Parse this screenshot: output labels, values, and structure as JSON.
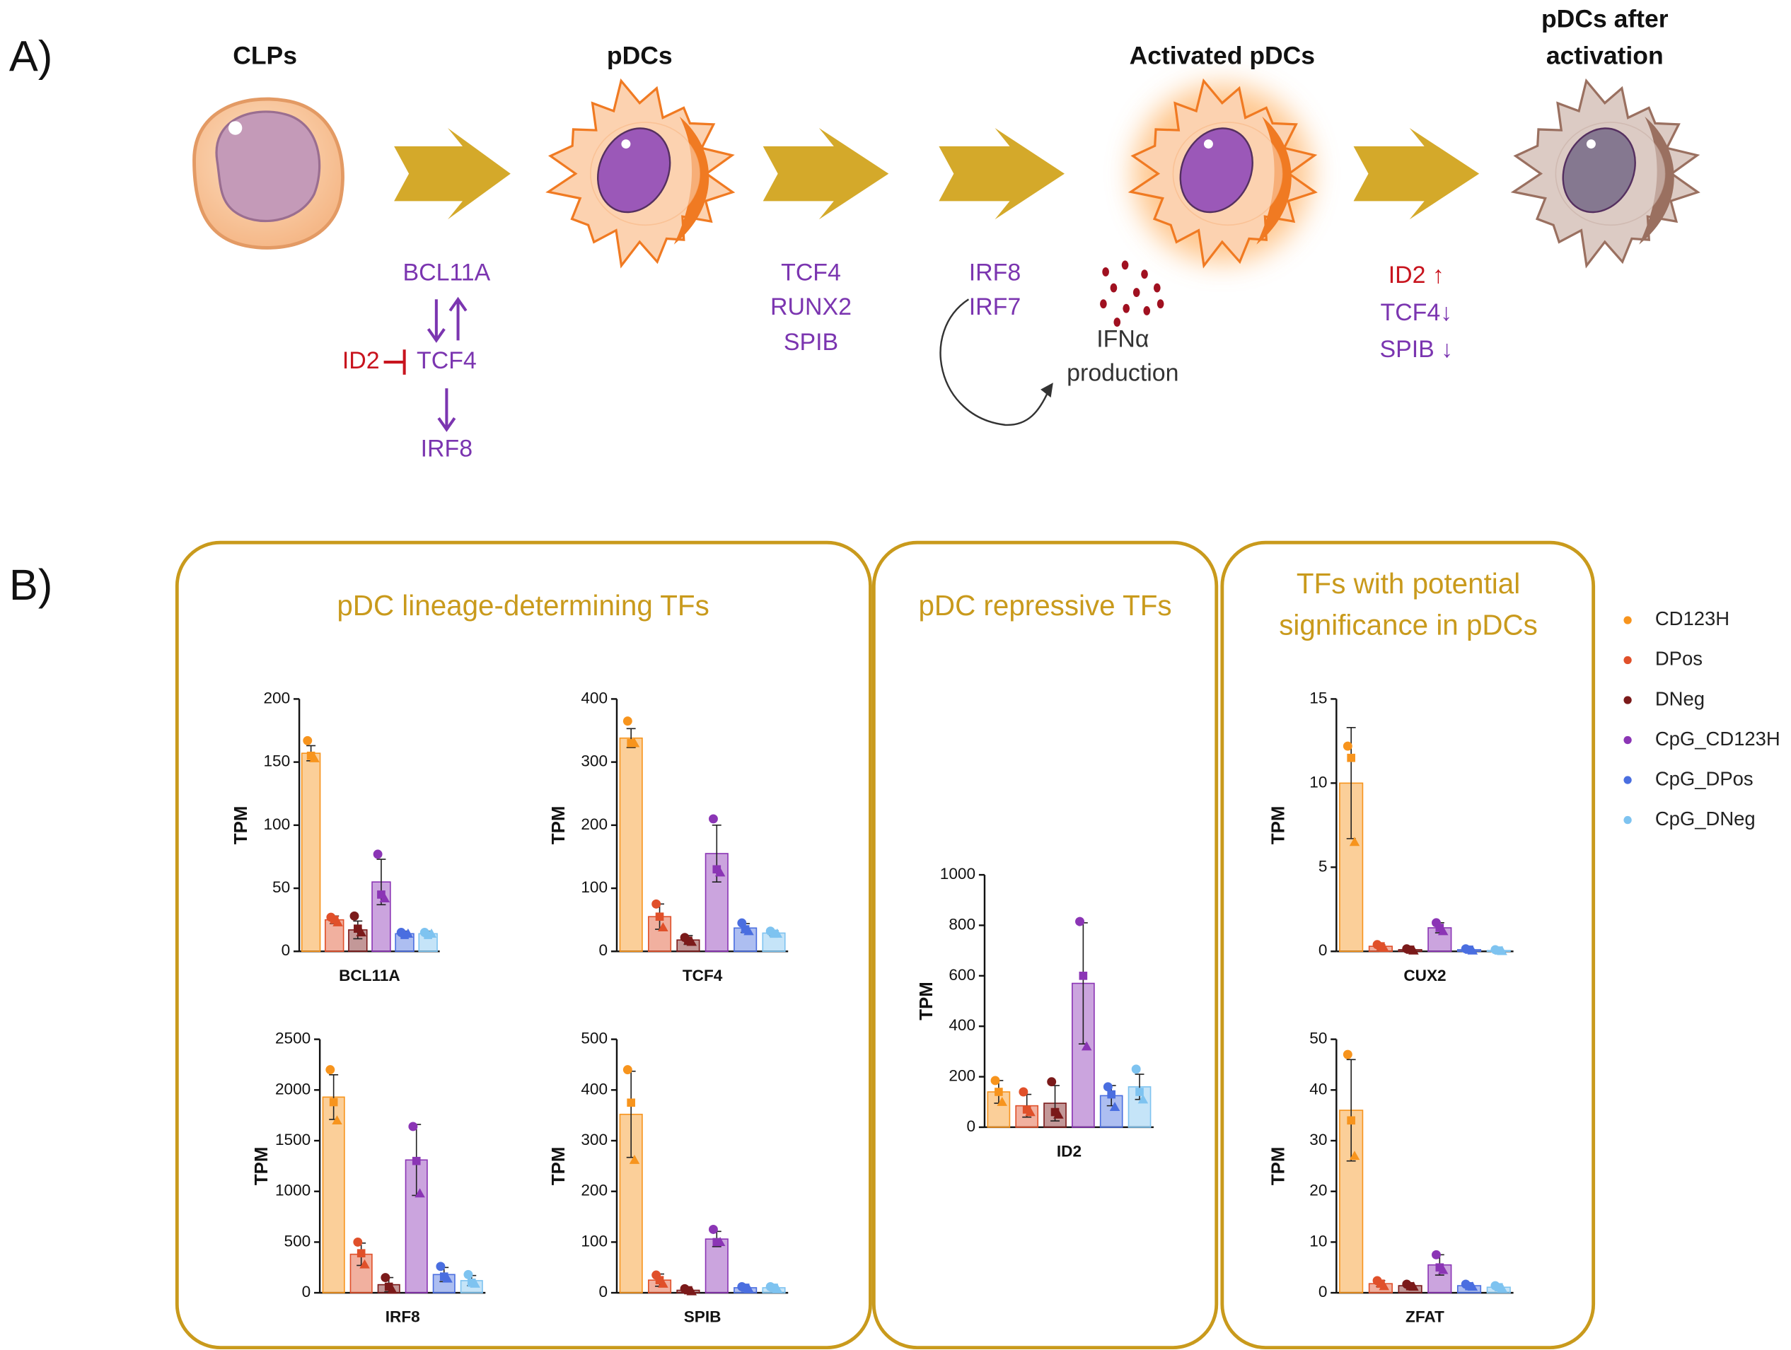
{
  "panel_a": {
    "label": "A)",
    "stages": [
      "CLPs",
      "pDCs",
      "Activated pDCs",
      "pDCs after",
      "activation"
    ],
    "step1": {
      "top": "BCL11A",
      "middle": "TCF4",
      "bottom": "IRF8",
      "inhibitor": "ID2"
    },
    "step2": [
      "TCF4",
      "RUNX2",
      "SPIB"
    ],
    "step3": [
      "IRF8",
      "IRF7"
    ],
    "output": [
      "IFNα",
      "production"
    ],
    "step4": [
      "ID2 ↑",
      "TCF4↓",
      "SPIB ↓"
    ]
  },
  "panel_b": {
    "label": "B)",
    "groups": [
      "pDC lineage-determining TFs",
      "pDC repressive TFs",
      "TFs with potential",
      "significance in pDCs"
    ]
  },
  "legend": {
    "names": [
      "CD123H",
      "DPos",
      "DNeg",
      "CpG_CD123H",
      "CpG_DPos",
      "CpG_DNeg"
    ],
    "colors": [
      "#f7941d",
      "#e0502a",
      "#7b1a1a",
      "#8b35b5",
      "#4a6ee0",
      "#7ec3f0"
    ]
  },
  "chart_data": [
    {
      "type": "bar",
      "xlabel": "BCL11A",
      "ylabel": "TPM",
      "ylim": [
        0,
        200
      ],
      "yticks": [
        0,
        50,
        100,
        150,
        200
      ],
      "values": [
        157,
        25,
        17,
        55,
        14,
        14
      ],
      "errors": [
        6,
        3,
        7,
        18,
        2,
        2
      ],
      "points": [
        [
          167,
          155,
          153
        ],
        [
          27,
          25,
          23
        ],
        [
          28,
          18,
          15
        ],
        [
          77,
          45,
          42
        ],
        [
          15,
          13,
          14
        ],
        [
          15,
          13,
          14
        ]
      ]
    },
    {
      "type": "bar",
      "xlabel": "TCF4",
      "ylabel": "TPM",
      "ylim": [
        0,
        400
      ],
      "yticks": [
        0,
        100,
        200,
        300,
        400
      ],
      "values": [
        338,
        55,
        18,
        155,
        37,
        29
      ],
      "errors": [
        15,
        20,
        7,
        45,
        7,
        4
      ],
      "points": [
        [
          365,
          330,
          330
        ],
        [
          75,
          55,
          38
        ],
        [
          22,
          17,
          15
        ],
        [
          210,
          130,
          125
        ],
        [
          45,
          35,
          32
        ],
        [
          32,
          28,
          28
        ]
      ]
    },
    {
      "type": "bar",
      "xlabel": "IRF8",
      "ylabel": "TPM",
      "ylim": [
        0,
        2500
      ],
      "yticks": [
        0,
        500,
        1000,
        1500,
        2000,
        2500
      ],
      "values": [
        1930,
        380,
        80,
        1310,
        180,
        120
      ],
      "errors": [
        220,
        110,
        70,
        350,
        70,
        50
      ],
      "points": [
        [
          2200,
          1880,
          1700
        ],
        [
          500,
          390,
          280
        ],
        [
          150,
          60,
          30
        ],
        [
          1640,
          1300,
          980
        ],
        [
          260,
          160,
          140
        ],
        [
          180,
          100,
          90
        ]
      ]
    },
    {
      "type": "bar",
      "xlabel": "SPIB",
      "ylabel": "TPM",
      "ylim": [
        0,
        500
      ],
      "yticks": [
        0,
        100,
        200,
        300,
        400,
        500
      ],
      "values": [
        352,
        25,
        5,
        106,
        10,
        10
      ],
      "errors": [
        85,
        12,
        4,
        15,
        3,
        3
      ],
      "points": [
        [
          440,
          375,
          262
        ],
        [
          35,
          25,
          18
        ],
        [
          8,
          5,
          3
        ],
        [
          125,
          100,
          100
        ],
        [
          12,
          10,
          8
        ],
        [
          12,
          10,
          8
        ]
      ]
    },
    {
      "type": "bar",
      "xlabel": "ID2",
      "ylabel": "TPM",
      "ylim": [
        0,
        1000
      ],
      "yticks": [
        0,
        200,
        400,
        600,
        800,
        1000
      ],
      "values": [
        140,
        85,
        95,
        570,
        125,
        160
      ],
      "errors": [
        45,
        45,
        70,
        240,
        40,
        50
      ],
      "points": [
        [
          185,
          140,
          100
        ],
        [
          140,
          70,
          60
        ],
        [
          180,
          60,
          50
        ],
        [
          815,
          600,
          320
        ],
        [
          160,
          130,
          80
        ],
        [
          230,
          140,
          110
        ]
      ]
    },
    {
      "type": "bar",
      "xlabel": "CUX2",
      "ylabel": "TPM",
      "ylim": [
        0,
        15
      ],
      "yticks": [
        0,
        5,
        10,
        15
      ],
      "values": [
        10,
        0.3,
        0.1,
        1.4,
        0.1,
        0.05
      ],
      "errors": [
        3.3,
        0.1,
        0.05,
        0.3,
        0.05,
        0.03
      ],
      "points": [
        [
          12.2,
          11.5,
          6.5
        ],
        [
          0.4,
          0.3,
          0.2
        ],
        [
          0.15,
          0.1,
          0.05
        ],
        [
          1.7,
          1.4,
          1.2
        ],
        [
          0.15,
          0.1,
          0.05
        ],
        [
          0.1,
          0.05,
          0.02
        ]
      ]
    },
    {
      "type": "bar",
      "xlabel": "ZFAT",
      "ylabel": "TPM",
      "ylim": [
        0,
        50
      ],
      "yticks": [
        0,
        10,
        20,
        30,
        40,
        50
      ],
      "values": [
        36,
        1.8,
        1.4,
        5.5,
        1.4,
        1.1
      ],
      "errors": [
        10,
        0.6,
        0.3,
        2,
        0.3,
        0.3
      ],
      "points": [
        [
          47,
          34,
          27
        ],
        [
          2.4,
          1.8,
          1.3
        ],
        [
          1.7,
          1.3,
          1.2
        ],
        [
          7.5,
          5,
          4.5
        ],
        [
          1.7,
          1.3,
          1.2
        ],
        [
          1.4,
          1.1,
          0.9
        ]
      ]
    }
  ]
}
